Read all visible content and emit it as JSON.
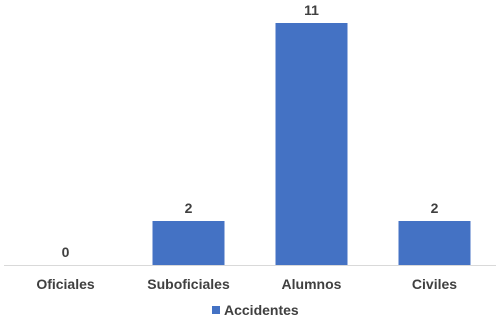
{
  "chart_data": {
    "type": "bar",
    "title": "",
    "xlabel": "",
    "ylabel": "",
    "categories": [
      "Oficiales",
      "Suboficiales",
      "Alumnos",
      "Civiles"
    ],
    "series": [
      {
        "name": "Accidentes",
        "values": [
          0,
          2,
          11,
          2
        ],
        "color": "#4472C4"
      }
    ],
    "ylim": [
      0,
      11
    ],
    "grid": false,
    "legend_position": "bottom",
    "data_labels": true,
    "label_color": "#404040",
    "axis_color": "#D9D9D9"
  }
}
